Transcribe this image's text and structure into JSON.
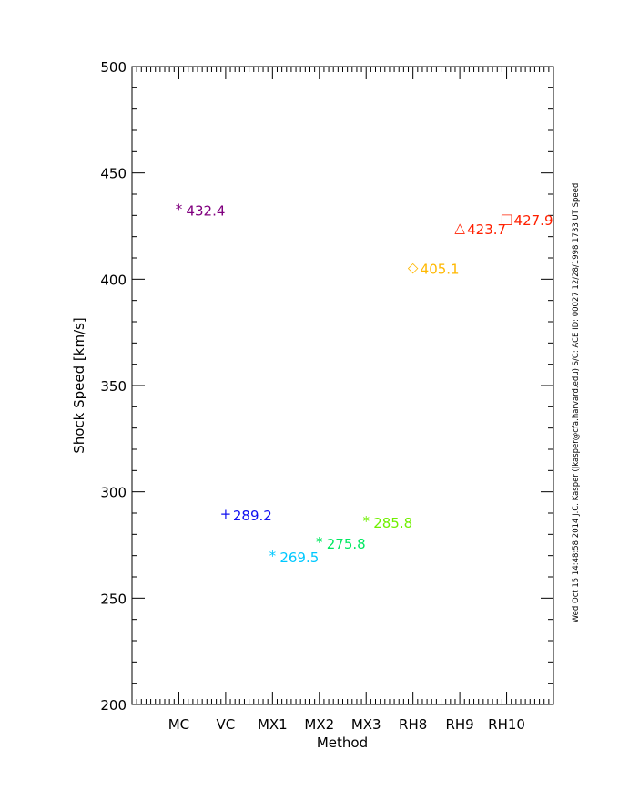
{
  "chart_data": {
    "type": "scatter",
    "title": "",
    "xlabel": "Method",
    "ylabel": "Shock Speed [km/s]",
    "ylim": [
      200,
      500
    ],
    "yticks": [
      200,
      250,
      300,
      350,
      400,
      450,
      500
    ],
    "categories": [
      "MC",
      "VC",
      "MX1",
      "MX2",
      "MX3",
      "RH8",
      "RH9",
      "RH10"
    ],
    "values": [
      432.4,
      289.2,
      269.5,
      275.8,
      285.8,
      405.1,
      423.7,
      427.9
    ],
    "labels": [
      "432.4",
      "289.2",
      "269.5",
      "275.8",
      "285.8",
      "405.1",
      "423.7",
      "427.9"
    ],
    "colors": [
      "#80007f",
      "#1010f0",
      "#00c8ff",
      "#00e860",
      "#70f000",
      "#ffb800",
      "#ff2000",
      "#ff2000"
    ],
    "markers": [
      "*",
      "+",
      "*",
      "*",
      "*",
      "◇",
      "△",
      "□"
    ],
    "grid": false,
    "legend": "none"
  },
  "side_note": "Wed Oct 15 14:48:58 2014   J.C. Kasper (jkasper@cfa.harvard.edu)   S/C: ACE ID: 00027 12/28/1998   1733 UT Speed"
}
